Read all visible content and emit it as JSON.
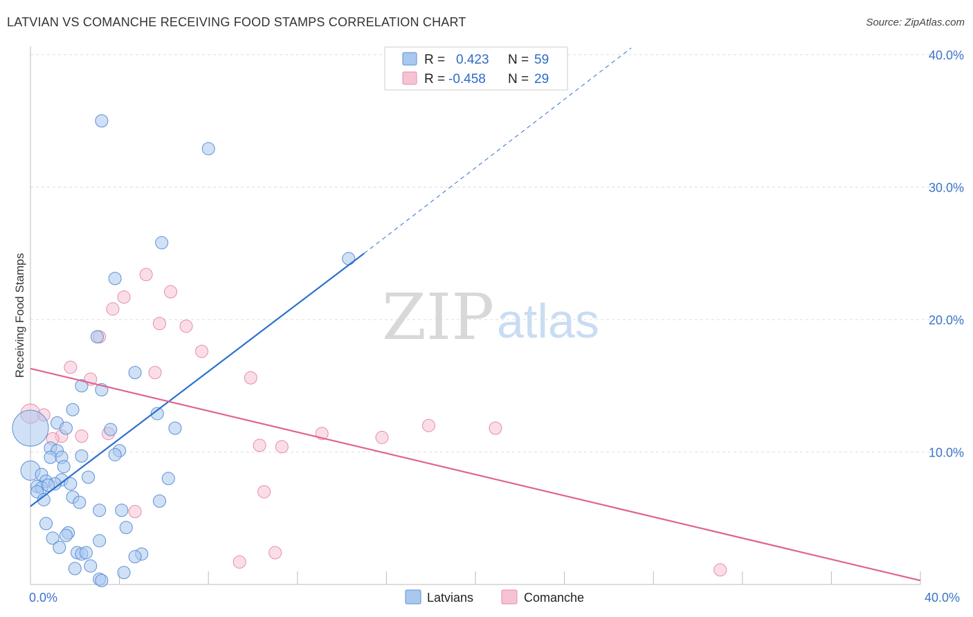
{
  "title": "LATVIAN VS COMANCHE RECEIVING FOOD STAMPS CORRELATION CHART",
  "source": "Source: ZipAtlas.com",
  "watermark": {
    "zip": "ZIP",
    "atlas": "atlas"
  },
  "colors": {
    "latvian_fill": "#a9c8ee",
    "latvian_stroke": "#5b8fd6",
    "latvian_line": "#2a6fce",
    "comanche_fill": "#f6c3d3",
    "comanche_stroke": "#e88aa8",
    "comanche_line": "#e0648f",
    "axis_text": "#3a74c9",
    "grid": "#dddddd"
  },
  "legend": {
    "r_label": "R =",
    "n_label": "N =",
    "latvians": {
      "r": "0.423",
      "n": "59"
    },
    "comanche": {
      "r": "-0.458",
      "n": "29"
    }
  },
  "bottom_legend": {
    "latvians": "Latvians",
    "comanche": "Comanche"
  },
  "chart_data": {
    "type": "scatter",
    "title": "LATVIAN VS COMANCHE RECEIVING FOOD STAMPS CORRELATION CHART",
    "xlabel": "",
    "ylabel": "Receiving Food Stamps",
    "xlim": [
      0,
      40
    ],
    "ylim": [
      0,
      40
    ],
    "x_tick_labels": [
      "0.0%",
      "40.0%"
    ],
    "y_ticks": [
      10,
      20,
      30,
      40
    ],
    "y_tick_labels": [
      "10.0%",
      "20.0%",
      "30.0%",
      "40.0%"
    ],
    "grid": true,
    "series": [
      {
        "name": "Latvians",
        "r": 0.423,
        "n": 59,
        "trend": {
          "x0": 0.0,
          "y0": 5.9,
          "x1": 15.0,
          "y1": 25.0,
          "dashed_to_x": 27.0,
          "dashed_to_y": 40.5
        },
        "points": [
          [
            0.0,
            11.8,
            26
          ],
          [
            0.0,
            8.6,
            14
          ],
          [
            3.2,
            35.0,
            9
          ],
          [
            8.0,
            32.9,
            9
          ],
          [
            5.9,
            25.8,
            9
          ],
          [
            14.3,
            24.6,
            9
          ],
          [
            3.8,
            23.1,
            9
          ],
          [
            3.0,
            18.7,
            9
          ],
          [
            4.7,
            16.0,
            9
          ],
          [
            2.3,
            15.0,
            9
          ],
          [
            3.2,
            14.7,
            9
          ],
          [
            1.9,
            13.2,
            9
          ],
          [
            5.7,
            12.9,
            9
          ],
          [
            1.2,
            12.2,
            9
          ],
          [
            1.6,
            11.8,
            9
          ],
          [
            3.6,
            11.7,
            9
          ],
          [
            6.5,
            11.8,
            9
          ],
          [
            0.9,
            10.3,
            9
          ],
          [
            1.2,
            10.1,
            9
          ],
          [
            4.0,
            10.1,
            9
          ],
          [
            3.8,
            9.8,
            9
          ],
          [
            0.9,
            9.6,
            9
          ],
          [
            1.4,
            9.6,
            9
          ],
          [
            2.3,
            9.7,
            9
          ],
          [
            1.5,
            8.9,
            9
          ],
          [
            0.5,
            8.3,
            9
          ],
          [
            2.6,
            8.1,
            9
          ],
          [
            6.2,
            8.0,
            9
          ],
          [
            1.4,
            7.9,
            9
          ],
          [
            0.7,
            7.8,
            9
          ],
          [
            1.1,
            7.6,
            9
          ],
          [
            1.8,
            7.6,
            9
          ],
          [
            0.3,
            7.4,
            9
          ],
          [
            0.5,
            7.3,
            9
          ],
          [
            0.8,
            7.5,
            9
          ],
          [
            0.3,
            7.0,
            9
          ],
          [
            1.9,
            6.6,
            9
          ],
          [
            0.6,
            6.4,
            9
          ],
          [
            2.2,
            6.2,
            9
          ],
          [
            5.8,
            6.3,
            9
          ],
          [
            3.1,
            5.6,
            9
          ],
          [
            4.1,
            5.6,
            9
          ],
          [
            0.7,
            4.6,
            9
          ],
          [
            4.3,
            4.3,
            9
          ],
          [
            1.7,
            3.9,
            9
          ],
          [
            1.6,
            3.7,
            9
          ],
          [
            1.0,
            3.5,
            9
          ],
          [
            3.1,
            3.3,
            9
          ],
          [
            1.3,
            2.8,
            9
          ],
          [
            2.1,
            2.4,
            9
          ],
          [
            2.3,
            2.3,
            9
          ],
          [
            2.5,
            2.4,
            9
          ],
          [
            5.0,
            2.3,
            9
          ],
          [
            4.7,
            2.1,
            9
          ],
          [
            2.7,
            1.4,
            9
          ],
          [
            2.0,
            1.2,
            9
          ],
          [
            4.2,
            0.9,
            9
          ],
          [
            3.1,
            0.4,
            9
          ],
          [
            3.2,
            0.3,
            9
          ]
        ]
      },
      {
        "name": "Comanche",
        "r": -0.458,
        "n": 29,
        "trend": {
          "x0": 0.0,
          "y0": 16.3,
          "x1": 40.0,
          "y1": 0.3
        },
        "points": [
          [
            0.0,
            12.9,
            14
          ],
          [
            5.2,
            23.4,
            9
          ],
          [
            4.2,
            21.7,
            9
          ],
          [
            6.3,
            22.1,
            9
          ],
          [
            3.7,
            20.8,
            9
          ],
          [
            5.8,
            19.7,
            9
          ],
          [
            7.0,
            19.5,
            9
          ],
          [
            3.1,
            18.7,
            9
          ],
          [
            7.7,
            17.6,
            9
          ],
          [
            1.8,
            16.4,
            9
          ],
          [
            5.6,
            16.0,
            9
          ],
          [
            9.9,
            15.6,
            9
          ],
          [
            2.7,
            15.5,
            9
          ],
          [
            0.6,
            12.8,
            9
          ],
          [
            17.9,
            12.0,
            9
          ],
          [
            20.9,
            11.8,
            9
          ],
          [
            3.5,
            11.4,
            9
          ],
          [
            13.1,
            11.4,
            9
          ],
          [
            1.4,
            11.2,
            9
          ],
          [
            2.3,
            11.2,
            9
          ],
          [
            1.0,
            11.0,
            9
          ],
          [
            15.8,
            11.1,
            9
          ],
          [
            10.3,
            10.5,
            9
          ],
          [
            11.3,
            10.4,
            9
          ],
          [
            10.5,
            7.0,
            9
          ],
          [
            4.7,
            5.5,
            9
          ],
          [
            11.0,
            2.4,
            9
          ],
          [
            9.4,
            1.7,
            9
          ],
          [
            31.0,
            1.1,
            9
          ]
        ]
      }
    ]
  }
}
